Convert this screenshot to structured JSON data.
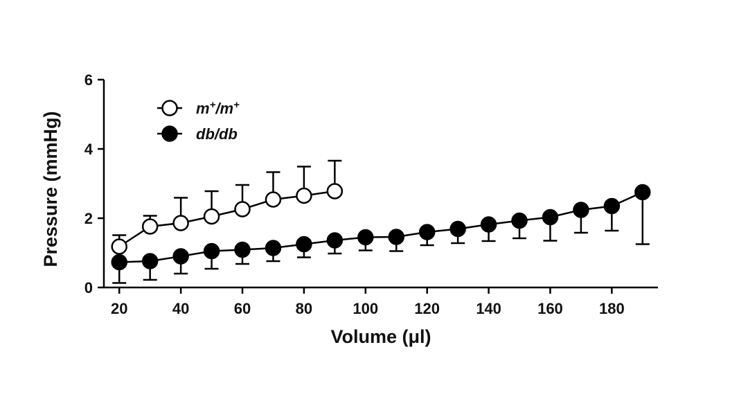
{
  "chart_data": {
    "type": "scatter",
    "title": "",
    "xlabel": "Volume (μl)",
    "ylabel": "Pressure (mmHg)",
    "xlim": [
      15,
      195
    ],
    "ylim": [
      0,
      6
    ],
    "x_ticks": [
      20,
      40,
      60,
      80,
      100,
      120,
      140,
      160,
      180
    ],
    "y_ticks": [
      0,
      2,
      4,
      6
    ],
    "grid": false,
    "legend_position": "top-left",
    "connected": true,
    "error_bars": "one-sided",
    "series": [
      {
        "name": "m⁺/m⁺",
        "legend_main": "m",
        "legend_sup": "+",
        "legend_sep": "/",
        "marker": "open-circle",
        "color": "#000000",
        "error_direction": "up",
        "x": [
          20,
          30,
          40,
          50,
          60,
          70,
          80,
          90
        ],
        "y": [
          1.18,
          1.76,
          1.86,
          2.05,
          2.26,
          2.54,
          2.65,
          2.78
        ],
        "error": [
          0.33,
          0.31,
          0.73,
          0.73,
          0.7,
          0.79,
          0.84,
          0.88
        ]
      },
      {
        "name": "db/db",
        "marker": "filled-circle",
        "color": "#000000",
        "error_direction": "down",
        "x": [
          20,
          30,
          40,
          50,
          60,
          70,
          80,
          90,
          100,
          110,
          120,
          130,
          140,
          150,
          160,
          170,
          180,
          190
        ],
        "y": [
          0.73,
          0.76,
          0.9,
          1.05,
          1.09,
          1.14,
          1.25,
          1.36,
          1.45,
          1.46,
          1.6,
          1.69,
          1.82,
          1.93,
          2.03,
          2.24,
          2.35,
          2.75
        ],
        "error": [
          0.6,
          0.54,
          0.5,
          0.51,
          0.41,
          0.38,
          0.38,
          0.38,
          0.38,
          0.41,
          0.38,
          0.41,
          0.48,
          0.51,
          0.68,
          0.66,
          0.71,
          1.5
        ]
      }
    ]
  }
}
